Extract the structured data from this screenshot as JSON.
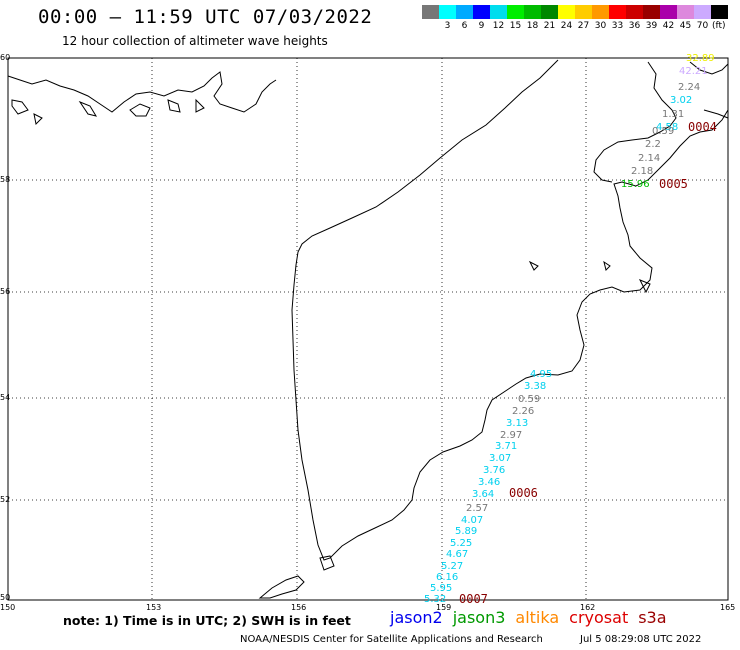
{
  "title": "00:00 – 11:59 UTC 07/03/2022",
  "subtitle": "12 hour collection of altimeter wave heights",
  "legend": {
    "colors": [
      "#777777",
      "#00ffff",
      "#00aaff",
      "#0000ff",
      "#00ddee",
      "#00ee00",
      "#00bb00",
      "#008800",
      "#ffff00",
      "#ffcc00",
      "#ff9900",
      "#ff0000",
      "#cc0000",
      "#990000",
      "#aa00aa",
      "#dd88dd",
      "#ccaaff",
      "#000000"
    ],
    "labels": [
      "3",
      "6",
      "9",
      "12",
      "15",
      "18",
      "21",
      "24",
      "27",
      "30",
      "33",
      "36",
      "39",
      "42",
      "45",
      "70"
    ],
    "unit": "(ft)"
  },
  "axes": {
    "x_ticks": [
      "150",
      "153",
      "156",
      "159",
      "162",
      "165"
    ],
    "y_ticks": [
      "60",
      "58",
      "56",
      "54",
      "52",
      "50"
    ]
  },
  "observations": [
    {
      "value": "32.89",
      "color": "#eeee00"
    },
    {
      "value": "42.21",
      "color": "#ccaaff"
    },
    {
      "value": "2.24",
      "color": "#777777"
    },
    {
      "value": "3.02",
      "color": "#00d0ee"
    },
    {
      "value": "1.31",
      "color": "#777777"
    },
    {
      "value": "4.58",
      "color": "#00d0ee"
    },
    {
      "value": "0.59",
      "color": "#777777"
    },
    {
      "value": "2.2",
      "color": "#777777"
    },
    {
      "value": "2.14",
      "color": "#777777"
    },
    {
      "value": "2.18",
      "color": "#777777"
    },
    {
      "value": "15.96",
      "color": "#00bb00"
    },
    {
      "value": "4.95",
      "color": "#00d0ee"
    },
    {
      "value": "3.38",
      "color": "#00d0ee"
    },
    {
      "value": "0.59",
      "color": "#777777"
    },
    {
      "value": "2.26",
      "color": "#777777"
    },
    {
      "value": "3.13",
      "color": "#00d0ee"
    },
    {
      "value": "2.97",
      "color": "#777777"
    },
    {
      "value": "3.71",
      "color": "#00d0ee"
    },
    {
      "value": "3.07",
      "color": "#00d0ee"
    },
    {
      "value": "3.76",
      "color": "#00d0ee"
    },
    {
      "value": "3.46",
      "color": "#00d0ee"
    },
    {
      "value": "3.64",
      "color": "#00d0ee"
    },
    {
      "value": "2.57",
      "color": "#777777"
    },
    {
      "value": "4.07",
      "color": "#00d0ee"
    },
    {
      "value": "5.89",
      "color": "#00d0ee"
    },
    {
      "value": "5.25",
      "color": "#00d0ee"
    },
    {
      "value": "4.67",
      "color": "#00d0ee"
    },
    {
      "value": "5.27",
      "color": "#00d0ee"
    },
    {
      "value": "6.16",
      "color": "#00d0ee"
    },
    {
      "value": "5.95",
      "color": "#00d0ee"
    },
    {
      "value": "5.32",
      "color": "#00d0ee"
    }
  ],
  "pass_ids": [
    "0004",
    "0005",
    "0006",
    "0007"
  ],
  "note": "note: 1) Time is in UTC; 2) SWH is in feet",
  "satellites": [
    {
      "name": "jason2",
      "color": "#0000ee"
    },
    {
      "name": "jason3",
      "color": "#009900"
    },
    {
      "name": "altika",
      "color": "#ff8800"
    },
    {
      "name": "cryosat",
      "color": "#dd0000"
    },
    {
      "name": "s3a",
      "color": "#990000"
    }
  ],
  "footer_left": "NOAA/NESDIS Center for Satellite Applications and Research",
  "footer_right": "Jul  5 08:29:08 UTC 2022"
}
